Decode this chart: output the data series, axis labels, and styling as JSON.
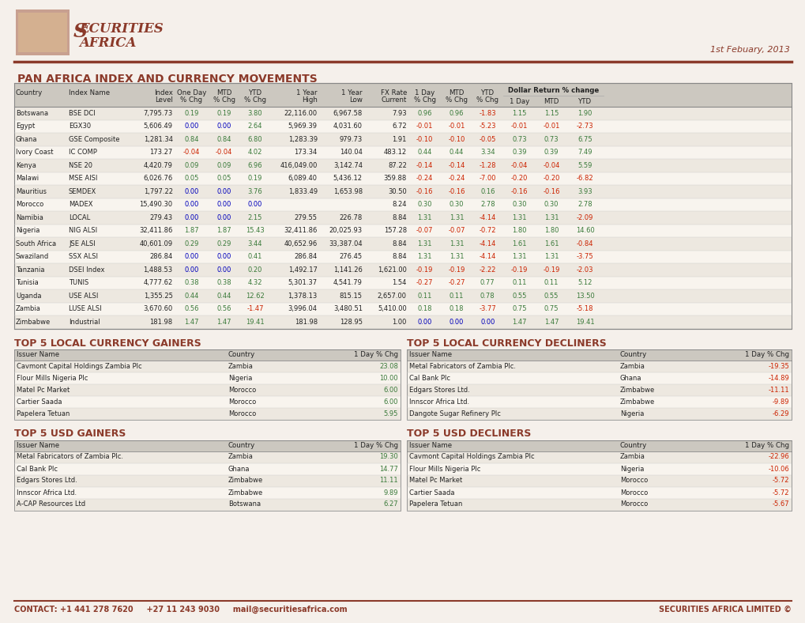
{
  "title": "PAN AFRICA INDEX AND CURRENCY MOVEMENTS",
  "date": "1st Febuary, 2013",
  "bg_color": "#f5f0eb",
  "header_color": "#8B3A2A",
  "green_color": "#3a7a3a",
  "red_color": "#cc2200",
  "blue_color": "#0000bb",
  "black_color": "#222222",
  "table_header_bg": "#ccc8c0",
  "table_row_bg1": "#ede8e0",
  "table_row_bg2": "#f8f4ee",
  "dollar_return_header": "Dollar Return % change",
  "main_data": [
    [
      "Botswana",
      "BSE DCI",
      "7,795.73",
      "0.19",
      "0.19",
      "3.80",
      "22,116.00",
      "6,967.58",
      "7.93",
      "0.96",
      "0.96",
      "-1.83",
      "1.15",
      "1.15",
      "1.90"
    ],
    [
      "Egypt",
      "EGX30",
      "5,606.49",
      "0.00",
      "0.00",
      "2.64",
      "5,969.39",
      "4,031.60",
      "6.72",
      "-0.01",
      "-0.01",
      "-5.23",
      "-0.01",
      "-0.01",
      "-2.73"
    ],
    [
      "Ghana",
      "GSE Composite",
      "1,281.34",
      "0.84",
      "0.84",
      "6.80",
      "1,283.39",
      "979.73",
      "1.91",
      "-0.10",
      "-0.10",
      "-0.05",
      "0.73",
      "0.73",
      "6.75"
    ],
    [
      "Ivory Coast",
      "IC COMP",
      "173.27",
      "-0.04",
      "-0.04",
      "4.02",
      "173.34",
      "140.04",
      "483.12",
      "0.44",
      "0.44",
      "3.34",
      "0.39",
      "0.39",
      "7.49"
    ],
    [
      "Kenya",
      "NSE 20",
      "4,420.79",
      "0.09",
      "0.09",
      "6.96",
      "416,049.00",
      "3,142.74",
      "87.22",
      "-0.14",
      "-0.14",
      "-1.28",
      "-0.04",
      "-0.04",
      "5.59"
    ],
    [
      "Malawi",
      "MSE AISI",
      "6,026.76",
      "0.05",
      "0.05",
      "0.19",
      "6,089.40",
      "5,436.12",
      "359.88",
      "-0.24",
      "-0.24",
      "-7.00",
      "-0.20",
      "-0.20",
      "-6.82"
    ],
    [
      "Mauritius",
      "SEMDEX",
      "1,797.22",
      "0.00",
      "0.00",
      "3.76",
      "1,833.49",
      "1,653.98",
      "30.50",
      "-0.16",
      "-0.16",
      "0.16",
      "-0.16",
      "-0.16",
      "3.93"
    ],
    [
      "Morocco",
      "MADEX",
      "15,490.30",
      "0.00",
      "0.00",
      "0.00",
      "",
      "",
      "8.24",
      "0.30",
      "0.30",
      "2.78",
      "0.30",
      "0.30",
      "2.78"
    ],
    [
      "Namibia",
      "LOCAL",
      "279.43",
      "0.00",
      "0.00",
      "2.15",
      "279.55",
      "226.78",
      "8.84",
      "1.31",
      "1.31",
      "-4.14",
      "1.31",
      "1.31",
      "-2.09"
    ],
    [
      "Nigeria",
      "NIG ALSI",
      "32,411.86",
      "1.87",
      "1.87",
      "15.43",
      "32,411.86",
      "20,025.93",
      "157.28",
      "-0.07",
      "-0.07",
      "-0.72",
      "1.80",
      "1.80",
      "14.60"
    ],
    [
      "South Africa",
      "JSE ALSI",
      "40,601.09",
      "0.29",
      "0.29",
      "3.44",
      "40,652.96",
      "33,387.04",
      "8.84",
      "1.31",
      "1.31",
      "-4.14",
      "1.61",
      "1.61",
      "-0.84"
    ],
    [
      "Swaziland",
      "SSX ALSI",
      "286.84",
      "0.00",
      "0.00",
      "0.41",
      "286.84",
      "276.45",
      "8.84",
      "1.31",
      "1.31",
      "-4.14",
      "1.31",
      "1.31",
      "-3.75"
    ],
    [
      "Tanzania",
      "DSEI Index",
      "1,488.53",
      "0.00",
      "0.00",
      "0.20",
      "1,492.17",
      "1,141.26",
      "1,621.00",
      "-0.19",
      "-0.19",
      "-2.22",
      "-0.19",
      "-0.19",
      "-2.03"
    ],
    [
      "Tunisia",
      "TUNIS",
      "4,777.62",
      "0.38",
      "0.38",
      "4.32",
      "5,301.37",
      "4,541.79",
      "1.54",
      "-0.27",
      "-0.27",
      "0.77",
      "0.11",
      "0.11",
      "5.12"
    ],
    [
      "Uganda",
      "USE ALSI",
      "1,355.25",
      "0.44",
      "0.44",
      "12.62",
      "1,378.13",
      "815.15",
      "2,657.00",
      "0.11",
      "0.11",
      "0.78",
      "0.55",
      "0.55",
      "13.50"
    ],
    [
      "Zambia",
      "LUSE ALSI",
      "3,670.60",
      "0.56",
      "0.56",
      "-1.47",
      "3,996.04",
      "3,480.51",
      "5,410.00",
      "0.18",
      "0.18",
      "-3.77",
      "0.75",
      "0.75",
      "-5.18"
    ],
    [
      "Zimbabwe",
      "Industrial",
      "181.98",
      "1.47",
      "1.47",
      "19.41",
      "181.98",
      "128.95",
      "1.00",
      "0.00",
      "0.00",
      "0.00",
      "1.47",
      "1.47",
      "19.41"
    ]
  ],
  "top5_local_gainers_title": "TOP 5 LOCAL CURRENCY GAINERS",
  "top5_local_gainers": [
    [
      "Cavmont Capital Holdings Zambia Plc",
      "Zambia",
      "23.08"
    ],
    [
      "Flour Mills Nigeria Plc",
      "Nigeria",
      "10.00"
    ],
    [
      "Matel Pc Market",
      "Morocco",
      "6.00"
    ],
    [
      "Cartier Saada",
      "Morocco",
      "6.00"
    ],
    [
      "Papelera Tetuan",
      "Morocco",
      "5.95"
    ]
  ],
  "top5_local_decliners_title": "TOP 5 LOCAL CURRENCY DECLINERS",
  "top5_local_decliners": [
    [
      "Metal Fabricators of Zambia Plc.",
      "Zambia",
      "-19.35"
    ],
    [
      "Cal Bank Plc",
      "Ghana",
      "-14.89"
    ],
    [
      "Edgars Stores Ltd.",
      "Zimbabwe",
      "-11.11"
    ],
    [
      "Innscor Africa Ltd.",
      "Zimbabwe",
      "-9.89"
    ],
    [
      "Dangote Sugar Refinery Plc",
      "Nigeria",
      "-6.29"
    ]
  ],
  "top5_usd_gainers_title": "TOP 5 USD GAINERS",
  "top5_usd_gainers": [
    [
      "Metal Fabricators of Zambia Plc.",
      "Zambia",
      "19.30"
    ],
    [
      "Cal Bank Plc",
      "Ghana",
      "14.77"
    ],
    [
      "Edgars Stores Ltd.",
      "Zimbabwe",
      "11.11"
    ],
    [
      "Innscor Africa Ltd.",
      "Zimbabwe",
      "9.89"
    ],
    [
      "A-CAP Resources Ltd",
      "Botswana",
      "6.27"
    ]
  ],
  "top5_usd_decliners_title": "TOP 5 USD DECLINERS",
  "top5_usd_decliners": [
    [
      "Cavmont Capital Holdings Zambia Plc",
      "Zambia",
      "-22.96"
    ],
    [
      "Flour Mills Nigeria Plc",
      "Nigeria",
      "-10.06"
    ],
    [
      "Matel Pc Market",
      "Morocco",
      "-5.72"
    ],
    [
      "Cartier Saada",
      "Morocco",
      "-5.72"
    ],
    [
      "Papelera Tetuan",
      "Morocco",
      "-5.67"
    ]
  ],
  "footer_left": "CONTACT: +1 441 278 7620     +27 11 243 9030     mail@securitiesafrica.com",
  "footer_right": "SECURITIES AFRICA LIMITED ©"
}
